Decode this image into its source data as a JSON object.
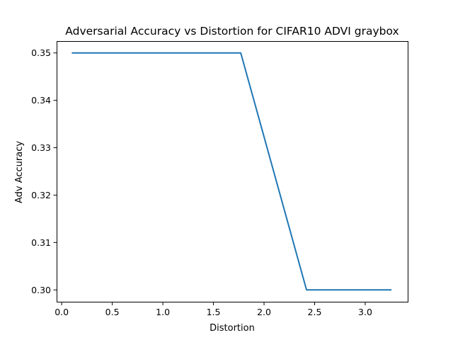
{
  "chart_data": {
    "type": "line",
    "title": "Adversarial Accuracy vs Distortion for CIFAR10 ADVI graybox",
    "xlabel": "Distortion",
    "ylabel": "Adv Accuracy",
    "xlim": [
      -0.05,
      3.42
    ],
    "ylim": [
      0.2975,
      0.3525
    ],
    "xticks": [
      0.0,
      0.5,
      1.0,
      1.5,
      2.0,
      2.5,
      3.0
    ],
    "xtick_labels": [
      "0.0",
      "0.5",
      "1.0",
      "1.5",
      "2.0",
      "2.5",
      "3.0"
    ],
    "yticks": [
      0.3,
      0.31,
      0.32,
      0.33,
      0.34,
      0.35
    ],
    "ytick_labels": [
      "0.30",
      "0.31",
      "0.32",
      "0.33",
      "0.34",
      "0.35"
    ],
    "grid": false,
    "series": [
      {
        "color": "#1f77b4",
        "x": [
          0.1,
          1.77,
          2.42,
          3.26
        ],
        "y": [
          0.35,
          0.35,
          0.3,
          0.3
        ]
      }
    ]
  }
}
